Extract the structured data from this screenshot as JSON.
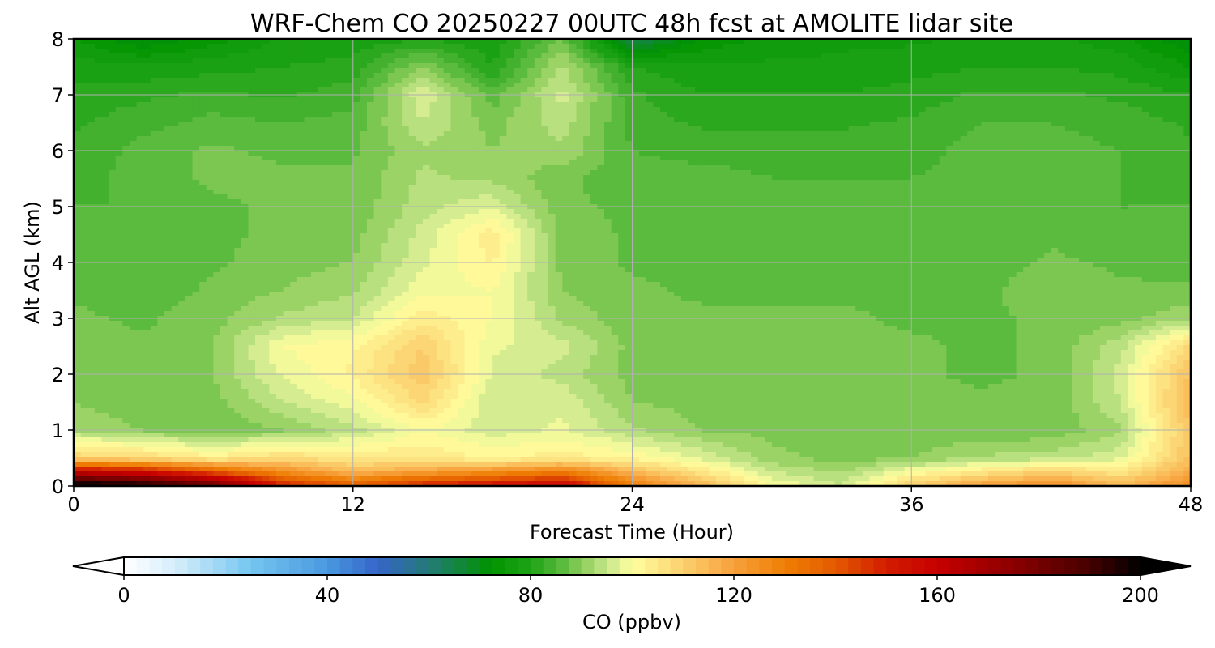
{
  "chart_data": {
    "type": "heatmap",
    "title": "WRF-Chem CO  20250227 00UTC 48h fcst at AMOLITE lidar site",
    "xlabel": "Forecast Time (Hour)",
    "ylabel": "Alt AGL (km)",
    "xlim": [
      0,
      48
    ],
    "ylim": [
      0,
      8
    ],
    "x_ticks": [
      "0",
      "12",
      "24",
      "36",
      "48"
    ],
    "y_ticks": [
      "0",
      "1",
      "2",
      "3",
      "4",
      "5",
      "6",
      "7",
      "8"
    ],
    "grid": true,
    "x_hours": [
      0,
      3,
      6,
      9,
      12,
      15,
      18,
      21,
      24,
      27,
      30,
      33,
      36,
      39,
      42,
      45,
      48
    ],
    "y_km": [
      0,
      0.25,
      0.5,
      1,
      1.5,
      2,
      2.5,
      3,
      3.5,
      4,
      4.5,
      5,
      5.5,
      6,
      6.5,
      7,
      7.5,
      8
    ],
    "values_ppbv": [
      [
        205,
        200,
        185,
        150,
        140,
        150,
        155,
        160,
        130,
        115,
        100,
        95,
        110,
        120,
        125,
        115,
        125
      ],
      [
        160,
        155,
        140,
        125,
        115,
        120,
        125,
        130,
        115,
        105,
        95,
        92,
        100,
        105,
        110,
        105,
        118
      ],
      [
        110,
        108,
        104,
        108,
        105,
        105,
        102,
        104,
        102,
        97,
        91,
        89,
        90,
        93,
        94,
        97,
        113
      ],
      [
        92,
        90,
        88,
        90,
        94,
        100,
        96,
        98,
        93,
        90,
        89,
        88,
        88,
        88,
        88,
        92,
        112
      ],
      [
        90,
        88,
        89,
        95,
        99,
        108,
        95,
        97,
        90,
        89,
        88,
        88,
        88,
        88,
        88,
        95,
        115
      ],
      [
        89,
        88,
        90,
        98,
        103,
        112,
        97,
        94,
        89,
        88,
        88,
        88,
        88,
        87,
        88,
        96,
        113
      ],
      [
        89,
        88,
        90,
        100,
        102,
        110,
        98,
        96,
        89,
        88,
        88,
        88,
        88,
        87,
        88,
        94,
        108
      ],
      [
        88,
        87,
        89,
        93,
        95,
        104,
        100,
        92,
        88,
        88,
        88,
        88,
        87,
        87,
        88,
        89,
        92
      ],
      [
        87,
        86,
        88,
        90,
        92,
        99,
        100,
        90,
        88,
        87,
        87,
        87,
        87,
        87,
        89,
        88,
        88
      ],
      [
        86,
        86,
        87,
        89,
        90,
        97,
        103,
        89,
        87,
        87,
        86,
        86,
        86,
        86,
        88,
        87,
        86
      ],
      [
        85,
        85,
        87,
        88,
        89,
        96,
        104,
        89,
        87,
        86,
        86,
        86,
        86,
        86,
        87,
        86,
        85
      ],
      [
        85,
        85,
        87,
        88,
        88,
        94,
        97,
        88,
        87,
        86,
        86,
        86,
        86,
        86,
        86,
        85,
        85
      ],
      [
        84,
        86,
        88,
        88,
        88,
        93,
        92,
        88,
        86,
        86,
        85,
        85,
        85,
        86,
        86,
        85,
        84
      ],
      [
        83,
        86,
        88,
        87,
        87,
        92,
        90,
        92,
        85,
        84,
        84,
        84,
        84,
        86,
        86,
        85,
        83
      ],
      [
        82,
        84,
        86,
        85,
        86,
        95,
        89,
        94,
        84,
        82,
        82,
        82,
        83,
        85,
        85,
        84,
        82
      ],
      [
        81,
        82,
        83,
        82,
        84,
        97,
        86,
        96,
        83,
        80,
        80,
        80,
        81,
        83,
        83,
        82,
        80
      ],
      [
        79,
        78,
        79,
        80,
        81,
        90,
        80,
        93,
        80,
        78,
        78,
        78,
        79,
        80,
        80,
        79,
        75
      ],
      [
        75,
        70,
        74,
        78,
        78,
        80,
        78,
        88,
        64,
        73,
        76,
        77,
        77,
        78,
        78,
        76,
        70
      ]
    ],
    "colorbar": {
      "label": "CO  (ppbv)",
      "tick_labels": [
        "0",
        "40",
        "80",
        "120",
        "160",
        "200"
      ],
      "tick_values": [
        0,
        40,
        80,
        120,
        160,
        200
      ],
      "range": [
        0,
        200
      ],
      "step": 2.5,
      "extend": "both",
      "palette_stops": [
        [
          0,
          "#ffffff"
        ],
        [
          10,
          "#d6eefb"
        ],
        [
          25,
          "#74c6f0"
        ],
        [
          40,
          "#4a98e0"
        ],
        [
          50,
          "#3565c8"
        ],
        [
          60,
          "#257a78"
        ],
        [
          72,
          "#009300"
        ],
        [
          80,
          "#1fa316"
        ],
        [
          86,
          "#58ba3c"
        ],
        [
          90,
          "#8ccd5a"
        ],
        [
          95,
          "#c8e68a"
        ],
        [
          100,
          "#ffffa0"
        ],
        [
          110,
          "#fbd06e"
        ],
        [
          120,
          "#f7a03c"
        ],
        [
          130,
          "#ef7f05"
        ],
        [
          140,
          "#e45a00"
        ],
        [
          150,
          "#d21c00"
        ],
        [
          160,
          "#c80000"
        ],
        [
          175,
          "#8c0000"
        ],
        [
          190,
          "#460000"
        ],
        [
          200,
          "#000000"
        ]
      ]
    }
  }
}
